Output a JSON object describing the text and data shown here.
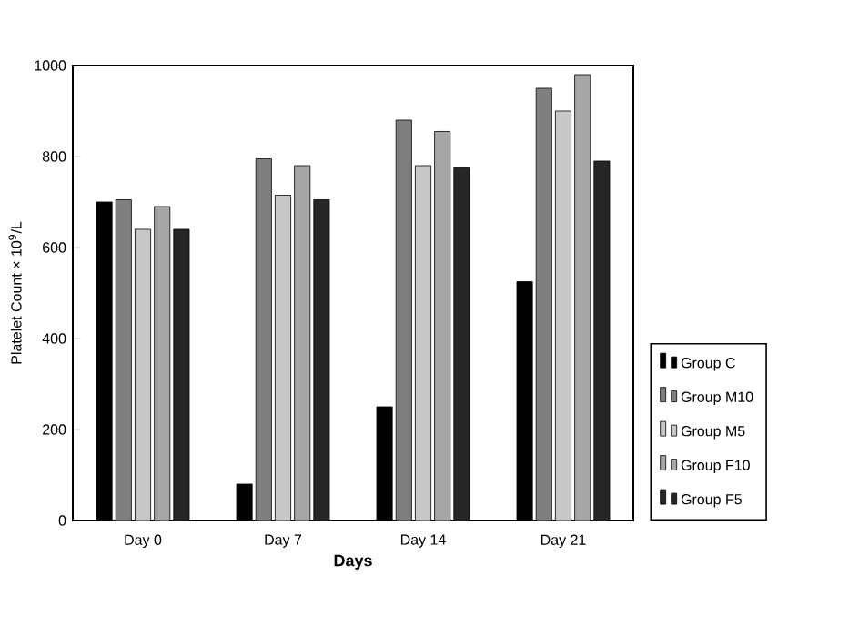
{
  "chart_data": {
    "type": "bar",
    "xlabel": "Days",
    "ylabel": "Platelet Count × 10$^{9}$/L",
    "categories": [
      "Day 0",
      "Day 7",
      "Day 14",
      "Day 21"
    ],
    "series": [
      {
        "name": "Group C",
        "color": "#000000",
        "values": [
          700,
          80,
          250,
          525
        ]
      },
      {
        "name": "Group M10",
        "color": "#7f7f7f",
        "values": [
          705,
          795,
          880,
          950
        ]
      },
      {
        "name": "Group M5",
        "color": "#c8c8c8",
        "values": [
          640,
          715,
          780,
          900
        ]
      },
      {
        "name": "Group F10",
        "color": "#a6a6a6",
        "values": [
          690,
          780,
          855,
          980
        ]
      },
      {
        "name": "Group F5",
        "color": "#262626",
        "values": [
          640,
          705,
          775,
          790
        ]
      }
    ],
    "ylim": [
      0,
      1000
    ],
    "yticks": [
      0,
      200,
      400,
      600,
      800,
      1000
    ],
    "grid": false,
    "legend": "right"
  }
}
